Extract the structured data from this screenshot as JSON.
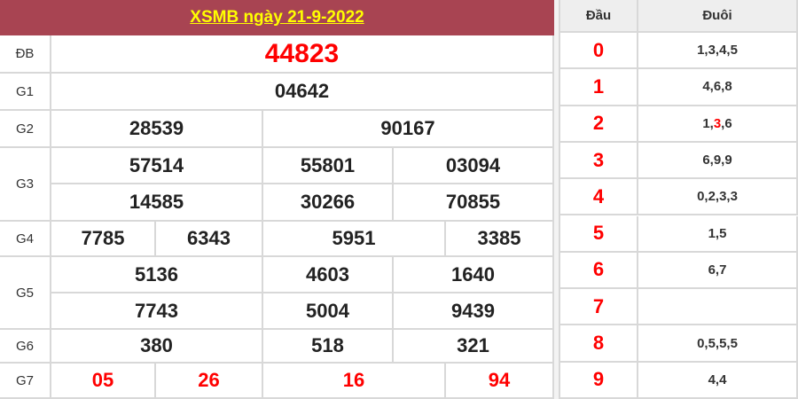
{
  "title": "XSMB ngày 21-9-2022",
  "labels": [
    "ĐB",
    "G1",
    "G2",
    "G3",
    "G4",
    "G5",
    "G6",
    "G7"
  ],
  "db": "44823",
  "g1": "04642",
  "g2": [
    "28539",
    "90167"
  ],
  "g3": [
    "57514",
    "55801",
    "03094",
    "14585",
    "30266",
    "70855"
  ],
  "g4": [
    "7785",
    "6343",
    "5951",
    "3385"
  ],
  "g5": [
    "5136",
    "4603",
    "1640",
    "7743",
    "5004",
    "9439"
  ],
  "g6": [
    "380",
    "518",
    "321"
  ],
  "g7": [
    "05",
    "26",
    "16",
    "94"
  ],
  "loto": {
    "head_label": "Đầu",
    "tail_label": "Đuôi",
    "rows": [
      {
        "dau": "0",
        "duoi": "1,3,4,5"
      },
      {
        "dau": "1",
        "duoi": "4,6,8"
      },
      {
        "dau": "2",
        "duoi_pre": "1,",
        "duoi_hl": "3",
        "duoi_post": ",6"
      },
      {
        "dau": "3",
        "duoi": "6,9,9"
      },
      {
        "dau": "4",
        "duoi": "0,2,3,3"
      },
      {
        "dau": "5",
        "duoi": "1,5"
      },
      {
        "dau": "6",
        "duoi": "6,7"
      },
      {
        "dau": "7",
        "duoi": ""
      },
      {
        "dau": "8",
        "duoi": "0,5,5,5"
      },
      {
        "dau": "9",
        "duoi": "4,4"
      }
    ]
  },
  "colors": {
    "header_bg": "#a84452",
    "title": "#ffff00",
    "highlight": "#ff0000"
  }
}
